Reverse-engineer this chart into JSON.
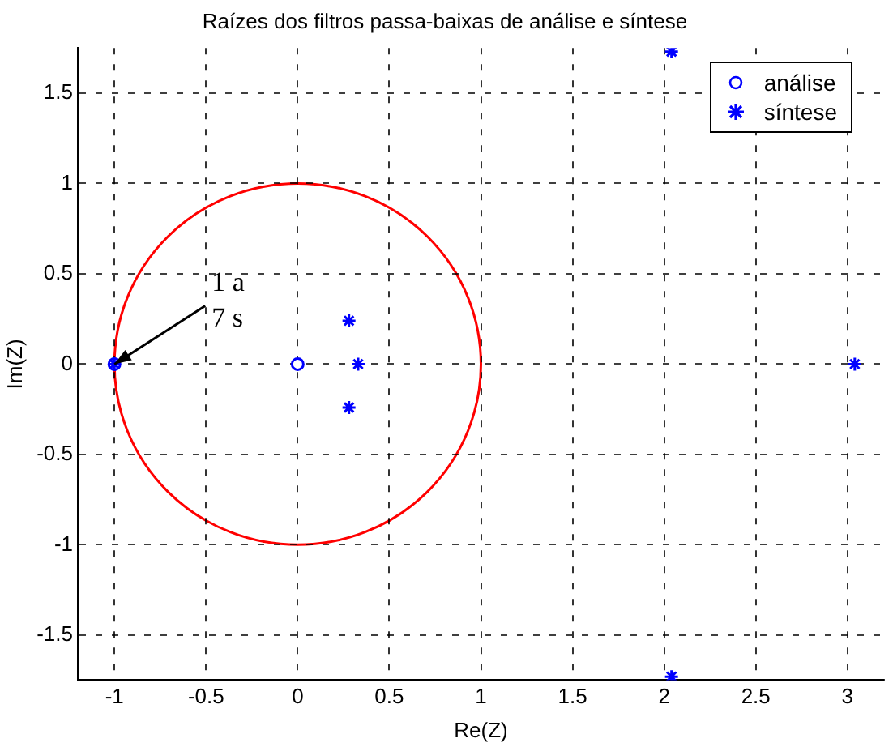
{
  "chart_data": {
    "type": "scatter",
    "title": "Raízes dos filtros passa-baixas de análise e síntese",
    "xlabel": "Re(Z)",
    "ylabel": "Im(Z)",
    "xlim": [
      -1.2,
      3.2
    ],
    "ylim": [
      -1.75,
      1.75
    ],
    "xticks": [
      -1,
      -0.5,
      0,
      0.5,
      1,
      1.5,
      2,
      2.5,
      3
    ],
    "yticks": [
      -1.5,
      -1,
      -0.5,
      0,
      0.5,
      1,
      1.5
    ],
    "grid": true,
    "legend": "top right",
    "annotations": [
      {
        "text": "1 a 7 s",
        "x": -1,
        "y": 0
      }
    ],
    "series": [
      {
        "name": "análise",
        "color": "#0000ff",
        "marker": "circle",
        "x": [
          -1,
          0
        ],
        "values": [
          0,
          0
        ]
      },
      {
        "name": "síntese",
        "color": "#0000ff",
        "marker": "cross",
        "x": [
          -1,
          0.28,
          0.33,
          0.28,
          3.04,
          2.04,
          2.04
        ],
        "values": [
          0,
          0.24,
          0,
          -0.24,
          0,
          1.73,
          -1.73
        ]
      }
    ]
  }
}
